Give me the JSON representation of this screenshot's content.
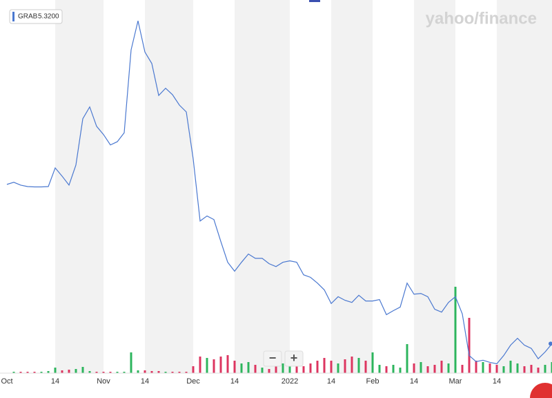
{
  "chart_data": {
    "type": "line",
    "watermark": "yahoo/finance",
    "controls": [
      "−",
      "+"
    ],
    "categories": [
      "Oct",
      null,
      null,
      null,
      null,
      null,
      null,
      "14",
      null,
      null,
      null,
      null,
      null,
      null,
      "Nov",
      null,
      null,
      null,
      null,
      null,
      "14",
      null,
      null,
      null,
      null,
      null,
      null,
      "Dec",
      null,
      null,
      null,
      null,
      null,
      "14",
      null,
      null,
      null,
      null,
      null,
      null,
      null,
      "2022",
      null,
      null,
      null,
      null,
      null,
      "14",
      null,
      null,
      null,
      null,
      null,
      "Feb",
      null,
      null,
      null,
      null,
      null,
      "14",
      null,
      null,
      null,
      null,
      null,
      "Mar",
      null,
      null,
      null,
      null,
      null,
      "14",
      null,
      null,
      null,
      null,
      null,
      null,
      null,
      null
    ],
    "series": [
      {
        "name": "GRAB",
        "last_label": "5.3200",
        "color": "#4a78d0",
        "values": [
          9.76,
          9.82,
          9.74,
          9.7,
          9.69,
          9.69,
          9.7,
          10.22,
          9.99,
          9.74,
          10.3,
          11.59,
          11.92,
          11.38,
          11.15,
          10.86,
          10.95,
          11.2,
          13.51,
          14.32,
          13.45,
          13.13,
          12.24,
          12.44,
          12.26,
          11.97,
          11.78,
          10.47,
          8.74,
          8.88,
          8.78,
          8.17,
          7.59,
          7.34,
          7.59,
          7.82,
          7.7,
          7.7,
          7.55,
          7.47,
          7.59,
          7.63,
          7.59,
          7.24,
          7.17,
          7.01,
          6.82,
          6.44,
          6.63,
          6.53,
          6.47,
          6.67,
          6.51,
          6.51,
          6.55,
          6.13,
          6.24,
          6.34,
          7.01,
          6.7,
          6.72,
          6.63,
          6.28,
          6.2,
          6.47,
          6.63,
          6.15,
          4.99,
          4.82,
          4.86,
          4.8,
          4.76,
          4.99,
          5.28,
          5.47,
          5.28,
          5.19,
          4.9,
          5.09,
          5.32
        ]
      },
      {
        "name": "Volume",
        "axis": "y2",
        "up_color": "#2db55d",
        "down_color": "#dd3560",
        "values": [
          0,
          2,
          2,
          2,
          2,
          2,
          3,
          8,
          4,
          5,
          6,
          9,
          3,
          2,
          2,
          2,
          2,
          2,
          30,
          4,
          4,
          3,
          3,
          2,
          2,
          2,
          2,
          10,
          24,
          22,
          20,
          24,
          26,
          18,
          14,
          16,
          12,
          8,
          6,
          10,
          14,
          18,
          16,
          10,
          14,
          18,
          22,
          18,
          14,
          20,
          24,
          22,
          18,
          30,
          12,
          10,
          12,
          8,
          42,
          14,
          16,
          10,
          12,
          18,
          14,
          125,
          12,
          80,
          18,
          16,
          14,
          12,
          10,
          18,
          14,
          10,
          12,
          8,
          12,
          16
        ]
      }
    ],
    "ylim": [
      4.5,
      14.9
    ],
    "y2lim": [
      0,
      160
    ]
  }
}
